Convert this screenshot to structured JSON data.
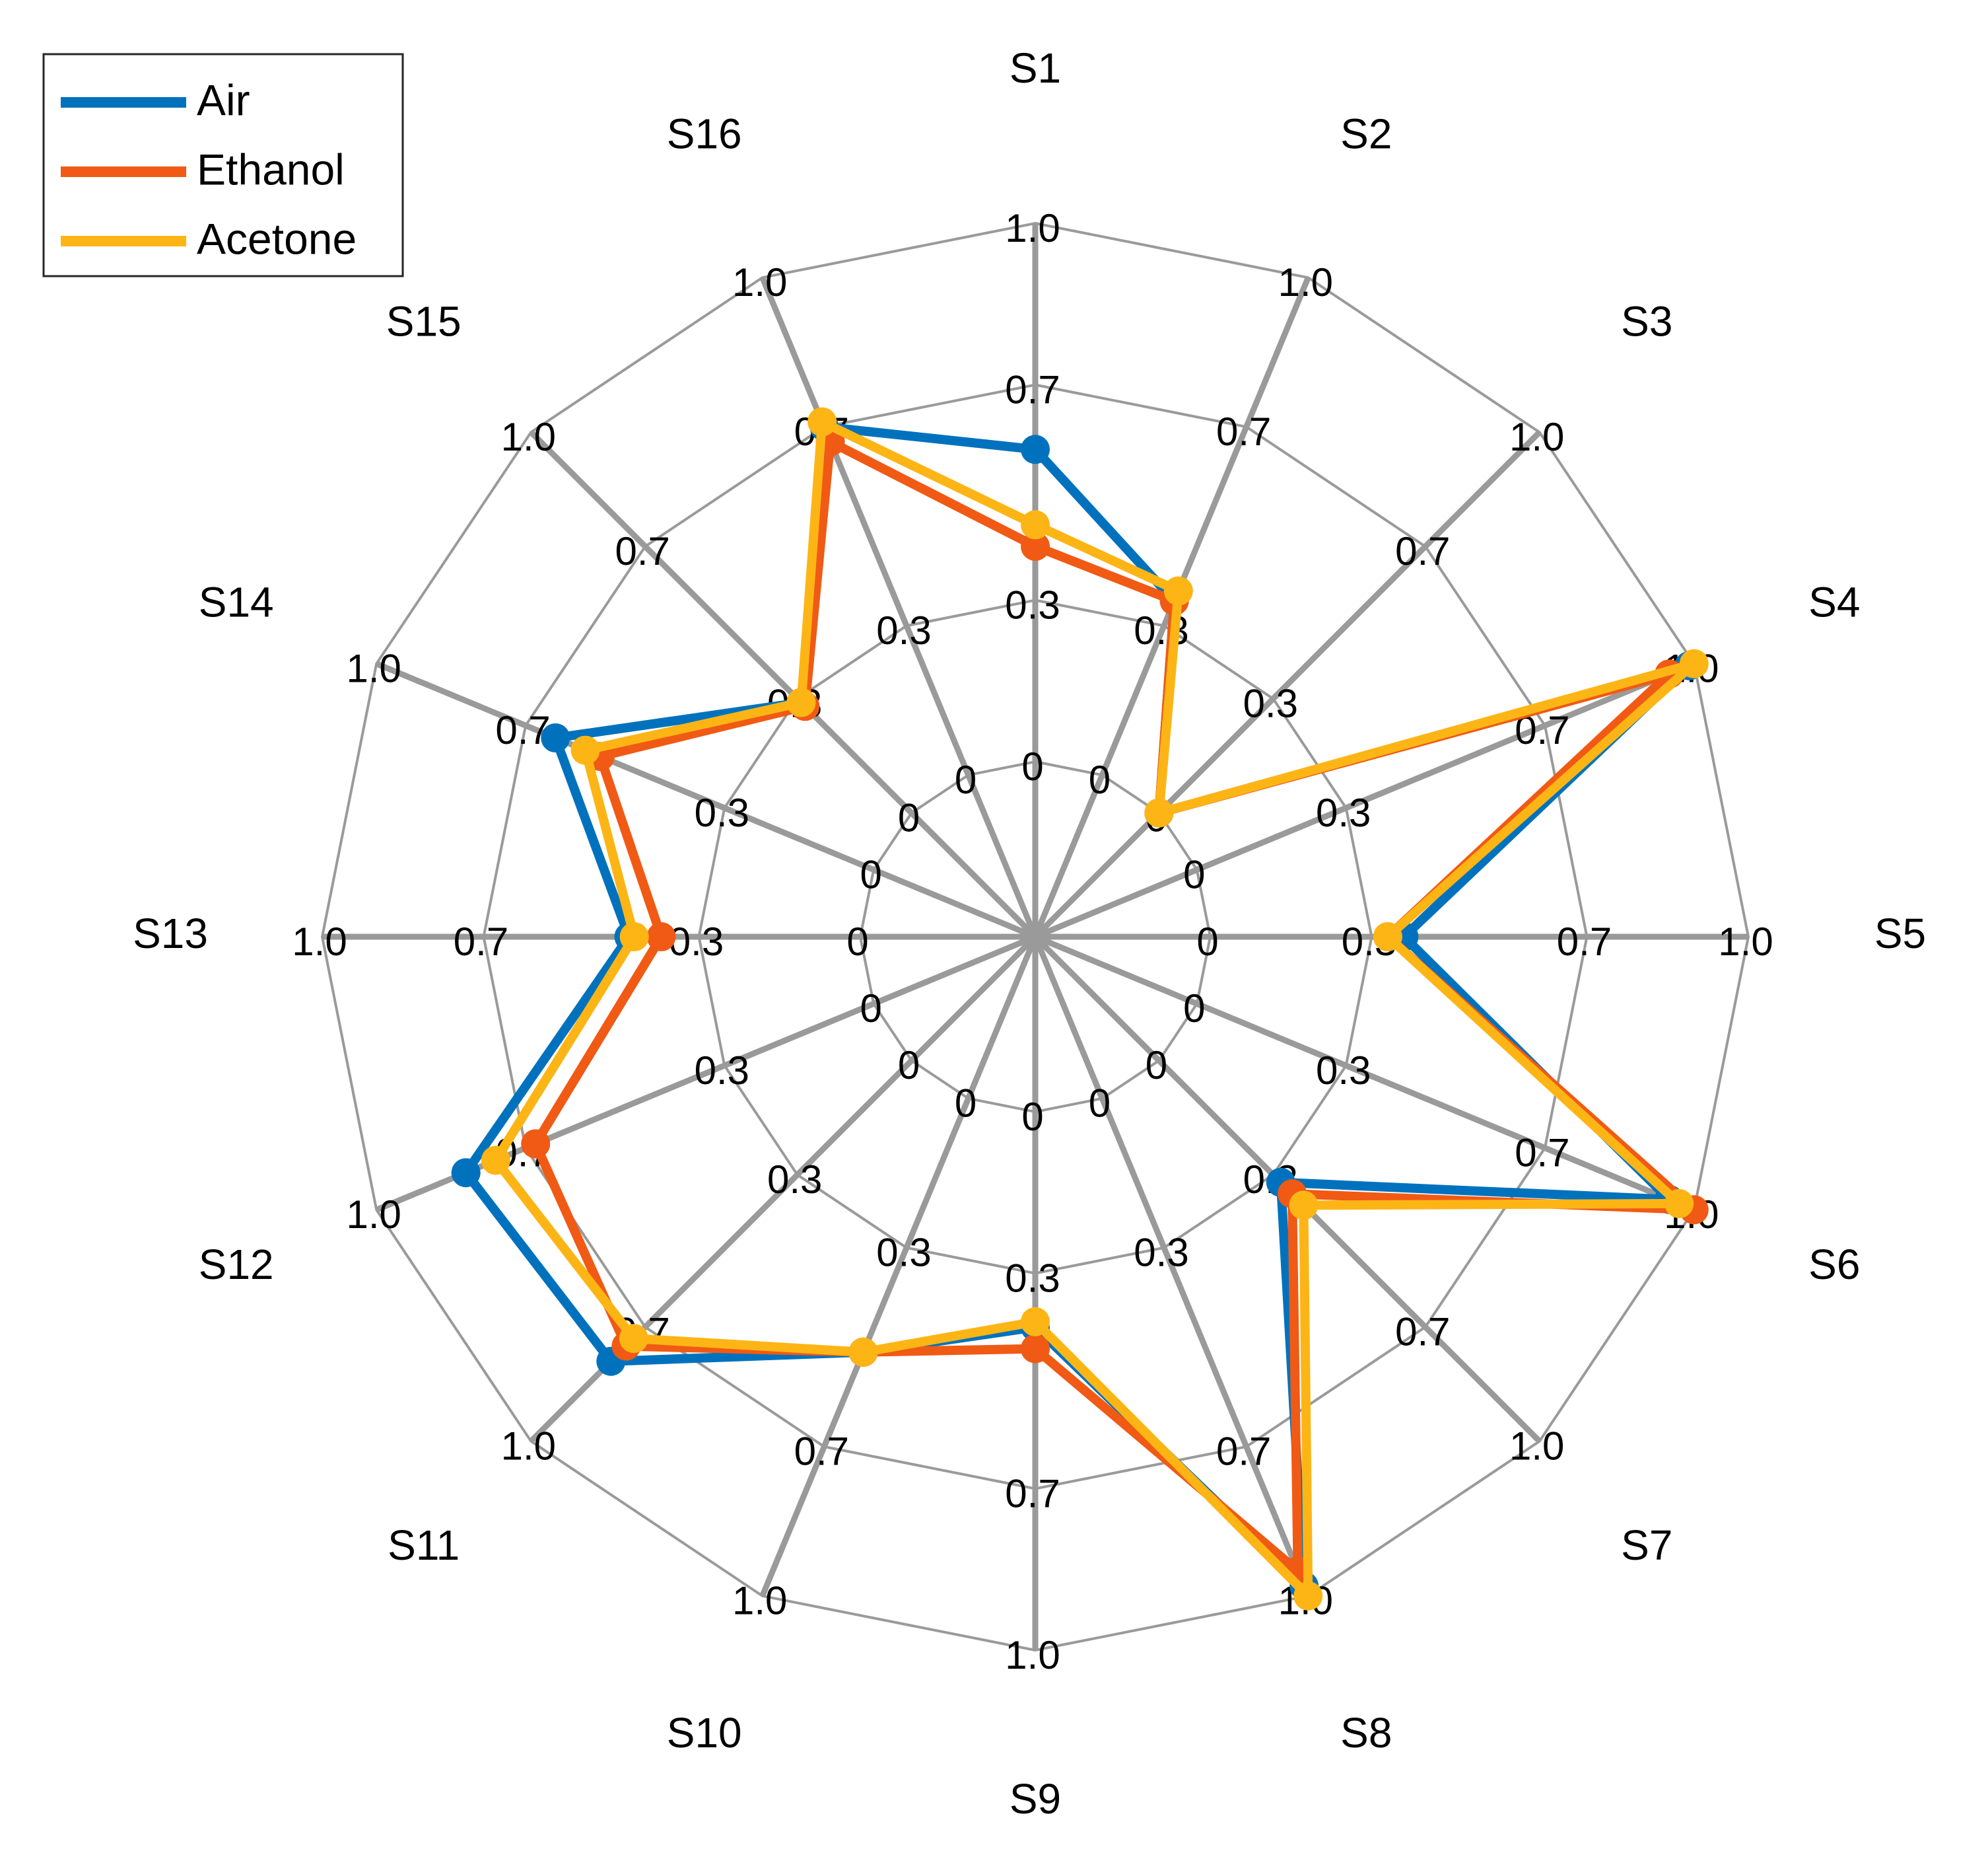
{
  "chart_data": {
    "type": "radar",
    "title": "",
    "axes": [
      "S1",
      "S2",
      "S3",
      "S4",
      "S5",
      "S6",
      "S7",
      "S8",
      "S9",
      "S10",
      "S11",
      "S12",
      "S13",
      "S14",
      "S15",
      "S16"
    ],
    "rlim": [
      0,
      1.0
    ],
    "ticks": [
      {
        "value": 0,
        "label": "0"
      },
      {
        "value": 0.3,
        "label": "0.3"
      },
      {
        "value": 0.7,
        "label": "0.7"
      },
      {
        "value": 1.0,
        "label": "1.0"
      }
    ],
    "grid": true,
    "legend_position": "top-left",
    "series": [
      {
        "name": "Air",
        "color": "#0072BD",
        "values": [
          0.58,
          0.35,
          0.0,
          0.99,
          0.36,
          0.95,
          0.32,
          0.98,
          0.4,
          0.51,
          0.79,
          0.82,
          0.43,
          0.64,
          0.29,
          0.7
        ]
      },
      {
        "name": "Ethanol",
        "color": "#F05A14",
        "values": [
          0.4,
          0.35,
          0.0,
          0.95,
          0.33,
          1.0,
          0.35,
          0.95,
          0.44,
          0.51,
          0.75,
          0.68,
          0.37,
          0.55,
          0.28,
          0.67
        ]
      },
      {
        "name": "Acetone",
        "color": "#FDB515",
        "values": [
          0.44,
          0.37,
          0.0,
          1.0,
          0.33,
          0.97,
          0.38,
          1.0,
          0.39,
          0.51,
          0.73,
          0.76,
          0.42,
          0.58,
          0.29,
          0.71
        ]
      }
    ]
  }
}
